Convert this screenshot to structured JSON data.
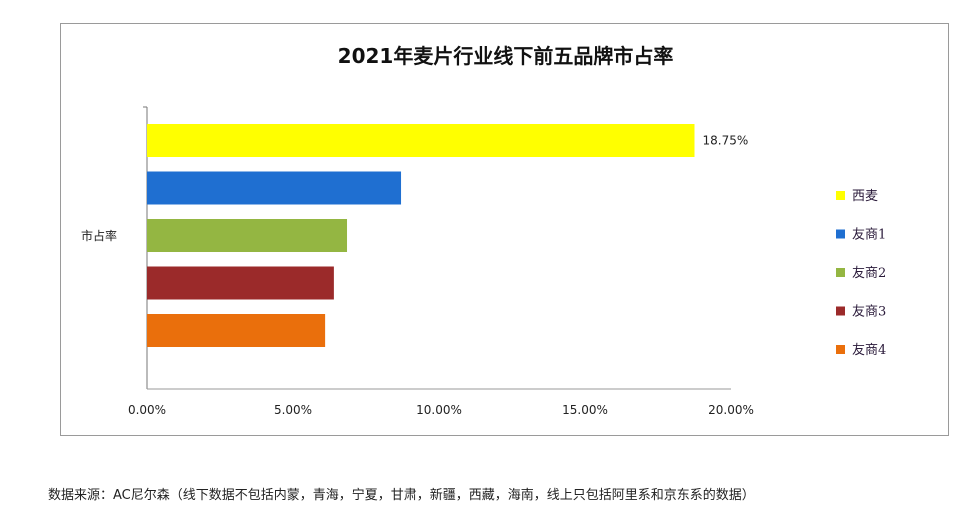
{
  "chart_data": {
    "type": "bar",
    "orientation": "horizontal",
    "title": "2021年麦片行业线下前五品牌市占率",
    "ylabel": "市占率",
    "xlim": [
      0,
      20
    ],
    "x_ticks": [
      "0.00%",
      "5.00%",
      "10.00%",
      "15.00%",
      "20.00%"
    ],
    "grid": false,
    "legend_position": "right",
    "series": [
      {
        "name": "西麦",
        "value": 18.75,
        "label": "18.75%",
        "color": "#ffff00"
      },
      {
        "name": "友商1",
        "value": 8.7,
        "color": "#1f6fd1"
      },
      {
        "name": "友商2",
        "value": 6.85,
        "color": "#94b642"
      },
      {
        "name": "友商3",
        "value": 6.4,
        "color": "#9b2a2a"
      },
      {
        "name": "友商4",
        "value": 6.1,
        "color": "#ea6f0c"
      }
    ]
  },
  "footer": "数据来源：AC尼尔森（线下数据不包括内蒙，青海，宁夏，甘肃，新疆，西藏，海南，线上只包括阿里系和京东系的数据）"
}
